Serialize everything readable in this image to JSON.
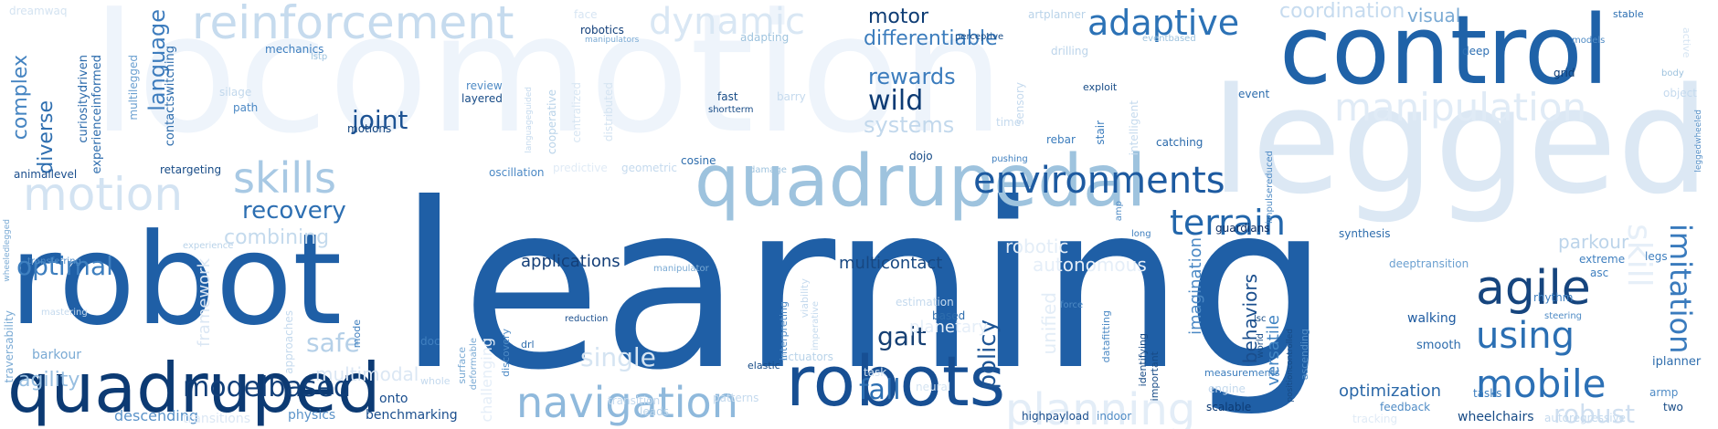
{
  "words": [
    {
      "t": "learning",
      "c": "#1f5fa6"
    },
    {
      "t": "robot",
      "c": "#1f5fa6"
    },
    {
      "t": "locomotion",
      "c": "#eef4fb"
    },
    {
      "t": "legged",
      "c": "#dce8f4"
    },
    {
      "t": "control",
      "c": "#1f62a8"
    },
    {
      "t": "quadrupedal",
      "c": "#9ec3de"
    },
    {
      "t": "quadruped",
      "c": "#0c3a73"
    },
    {
      "t": "robots",
      "c": "#174f93"
    },
    {
      "t": "reinforcement",
      "c": "#c6dbee"
    },
    {
      "t": "motion",
      "c": "#d3e3f2"
    },
    {
      "t": "planning",
      "c": "#e3edf7"
    },
    {
      "t": "navigation",
      "c": "#8fb9dc"
    },
    {
      "t": "manipulation",
      "c": "#e0ebf6"
    },
    {
      "t": "skills",
      "c": "#a8c9e4"
    },
    {
      "t": "environments",
      "c": "#1d5aa0"
    },
    {
      "t": "terrain",
      "c": "#2266ab"
    },
    {
      "t": "agile",
      "c": "#16457e"
    },
    {
      "t": "adaptive",
      "c": "#2c72b6"
    },
    {
      "t": "dynamic",
      "c": "#d9e7f4"
    },
    {
      "t": "mobile",
      "c": "#2c70b5"
    },
    {
      "t": "using",
      "c": "#2b6fb3"
    },
    {
      "t": "robust",
      "c": "#cfdff0"
    },
    {
      "t": "imitation",
      "c": "#3a7bbd"
    },
    {
      "t": "skill",
      "c": "#e6eff8"
    },
    {
      "t": "wild",
      "c": "#0d3b74"
    },
    {
      "t": "modelbased",
      "c": "#103e78"
    },
    {
      "t": "recovery",
      "c": "#2d6fb2"
    },
    {
      "t": "optimal",
      "c": "#3e7fbf"
    },
    {
      "t": "fall",
      "c": "#2c6fb2"
    },
    {
      "t": "gait",
      "c": "#153f73"
    },
    {
      "t": "safe",
      "c": "#b5d0e8"
    },
    {
      "t": "single",
      "c": "#d5e4f2"
    },
    {
      "t": "agility",
      "c": "#97bee0"
    },
    {
      "t": "diverse",
      "c": "#2f6fb0"
    },
    {
      "t": "language",
      "c": "#3d7cbd"
    },
    {
      "t": "complex",
      "c": "#4584c1"
    },
    {
      "t": "joint",
      "c": "#1c5293"
    },
    {
      "t": "motor",
      "c": "#0e3c74"
    },
    {
      "t": "differentiable",
      "c": "#3c7dbd"
    },
    {
      "t": "rewards",
      "c": "#3b7cbd"
    },
    {
      "t": "systems",
      "c": "#c2d8ec"
    },
    {
      "t": "coordination",
      "c": "#c6dbef"
    },
    {
      "t": "visual",
      "c": "#7aaad4"
    },
    {
      "t": "combining",
      "c": "#c4daed"
    },
    {
      "t": "applications",
      "c": "#143f78"
    },
    {
      "t": "multicontact",
      "c": "#174781"
    },
    {
      "t": "autonomous",
      "c": "#e5eef8"
    },
    {
      "t": "policy",
      "c": "#1e5595"
    },
    {
      "t": "behaviors",
      "c": "#1a4e8d"
    },
    {
      "t": "versatile",
      "c": "#4184c3"
    },
    {
      "t": "imagination",
      "c": "#4b89c5"
    },
    {
      "t": "parkour",
      "c": "#bcd4ea"
    },
    {
      "t": "optimization",
      "c": "#2b68a8"
    },
    {
      "t": "multimodal",
      "c": "#dbe7f4"
    },
    {
      "t": "framework",
      "c": "#dbe7f4"
    },
    {
      "t": "unified",
      "c": "#e3edf7"
    },
    {
      "t": "robotic",
      "c": "#e3edf7"
    },
    {
      "t": "challenging",
      "c": "#e5eef8"
    },
    {
      "t": "physics",
      "c": "#5b93c9"
    },
    {
      "t": "descending",
      "c": "#5b93c9"
    },
    {
      "t": "benchmarking",
      "c": "#1a4e8d"
    },
    {
      "t": "robotics",
      "c": "#123f7a"
    },
    {
      "t": "face",
      "c": "#d7e5f3"
    },
    {
      "t": "dreamwaq",
      "c": "#d4e3f1"
    },
    {
      "t": "mechanics",
      "c": "#3f7fbf"
    },
    {
      "t": "curiositydriven",
      "c": "#2b6aab"
    },
    {
      "t": "experienceinformed",
      "c": "#2d6cad"
    },
    {
      "t": "contactswitching",
      "c": "#2e6dad"
    },
    {
      "t": "multilegged",
      "c": "#6a9fd0"
    },
    {
      "t": "review",
      "c": "#4f8bc5"
    },
    {
      "t": "layered",
      "c": "#174b86"
    },
    {
      "t": "path",
      "c": "#4b88c4"
    },
    {
      "t": "silage",
      "c": "#c2d8ec"
    },
    {
      "t": "motions",
      "c": "#15467f"
    },
    {
      "t": "retargeting",
      "c": "#174b86"
    },
    {
      "t": "animallevel",
      "c": "#1a4e8d"
    },
    {
      "t": "oscillation",
      "c": "#4c89c5"
    },
    {
      "t": "predictive",
      "c": "#e0ebf6"
    },
    {
      "t": "geometric",
      "c": "#c5daee"
    },
    {
      "t": "cosine",
      "c": "#2e6dad"
    },
    {
      "t": "fast",
      "c": "#174b86"
    },
    {
      "t": "shortterm",
      "c": "#174b86"
    },
    {
      "t": "centralized",
      "c": "#d8e6f3"
    },
    {
      "t": "distributed",
      "c": "#d5e4f2"
    },
    {
      "t": "cooperative",
      "c": "#b9d3e9"
    },
    {
      "t": "manipulators",
      "c": "#7aaad4"
    },
    {
      "t": "adapting",
      "c": "#9ec3de"
    },
    {
      "t": "drilling",
      "c": "#bcd4ea"
    },
    {
      "t": "deep",
      "c": "#2d6fb2"
    },
    {
      "t": "grid",
      "c": "#0d3b74"
    },
    {
      "t": "stable",
      "c": "#2c6fb2"
    },
    {
      "t": "perceptive",
      "c": "#174b86"
    },
    {
      "t": "eventbased",
      "c": "#9ec3de"
    },
    {
      "t": "artplanner",
      "c": "#b9d3e9"
    },
    {
      "t": "exploit",
      "c": "#174b86"
    },
    {
      "t": "catching",
      "c": "#2b6aab"
    },
    {
      "t": "rebar",
      "c": "#3c7dbd"
    },
    {
      "t": "stair",
      "c": "#3c7dbd"
    },
    {
      "t": "pushing",
      "c": "#3f7fbf"
    },
    {
      "t": "dojo",
      "c": "#174b86"
    },
    {
      "t": "synthesis",
      "c": "#2e6dad"
    },
    {
      "t": "guardians",
      "c": "#102f63"
    },
    {
      "t": "long",
      "c": "#3f7fbf"
    },
    {
      "t": "deeptransition",
      "c": "#6a9fd0"
    },
    {
      "t": "extreme",
      "c": "#3f7fbf"
    },
    {
      "t": "asc",
      "c": "#3f7fbf"
    },
    {
      "t": "legs",
      "c": "#3f7fbf"
    },
    {
      "t": "rhythm",
      "c": "#3f7fbf"
    },
    {
      "t": "steering",
      "c": "#4f8bc5"
    },
    {
      "t": "walking",
      "c": "#1d5aa0"
    },
    {
      "t": "smooth",
      "c": "#2b6aab"
    },
    {
      "t": "tasks",
      "c": "#3c7dbd"
    },
    {
      "t": "iplanner",
      "c": "#2e6dad"
    },
    {
      "t": "armp",
      "c": "#4f8bc5"
    },
    {
      "t": "two",
      "c": "#174b86"
    },
    {
      "t": "wheelchairs",
      "c": "#174b86"
    },
    {
      "t": "feedback",
      "c": "#4f8bc5"
    },
    {
      "t": "tracking",
      "c": "#e0ebf6"
    },
    {
      "t": "indoor",
      "c": "#4f8bc5"
    },
    {
      "t": "scalable",
      "c": "#0d3b74"
    },
    {
      "t": "engine",
      "c": "#c5daee"
    },
    {
      "t": "measurements",
      "c": "#3c7dbd"
    },
    {
      "t": "highpayload",
      "c": "#1a4e8d"
    },
    {
      "t": "datafitting",
      "c": "#4f8bc5"
    },
    {
      "t": "identifying",
      "c": "#174b86"
    },
    {
      "t": "important",
      "c": "#174b86"
    },
    {
      "t": "estimation",
      "c": "#c5daee"
    },
    {
      "t": "based",
      "c": "#2e6dad"
    },
    {
      "t": "force",
      "c": "#4f8bc5"
    },
    {
      "t": "planetary",
      "c": "#e5eef8"
    },
    {
      "t": "elastic",
      "c": "#174b86"
    },
    {
      "t": "actuators",
      "c": "#b9d3e9"
    },
    {
      "t": "task",
      "c": "#d5e4f2"
    },
    {
      "t": "neural",
      "c": "#d5e4f2"
    },
    {
      "t": "patterns",
      "c": "#c5daee"
    },
    {
      "t": "transition",
      "c": "#c5daee"
    },
    {
      "t": "leads",
      "c": "#b9d3e9"
    },
    {
      "t": "reduction",
      "c": "#1a4e8d"
    },
    {
      "t": "manipulator",
      "c": "#7aaad4"
    },
    {
      "t": "drl",
      "c": "#2e6dad"
    },
    {
      "t": "doc",
      "c": "#3f7fbf"
    },
    {
      "t": "mode",
      "c": "#3f7fbf"
    },
    {
      "t": "surface",
      "c": "#7aaad4"
    },
    {
      "t": "deformable",
      "c": "#7aaad4"
    },
    {
      "t": "discovery",
      "c": "#4f8bc5"
    },
    {
      "t": "approaches",
      "c": "#c5daee"
    },
    {
      "t": "transferring",
      "c": "#4f8bc5"
    },
    {
      "t": "mastering",
      "c": "#c5daee"
    },
    {
      "t": "traversability",
      "c": "#7aaad4"
    },
    {
      "t": "wheeledlegged",
      "c": "#7aaad4"
    },
    {
      "t": "barkour",
      "c": "#7aaad4"
    },
    {
      "t": "experience",
      "c": "#b9d3e9"
    },
    {
      "t": "whole",
      "c": "#c5daee"
    },
    {
      "t": "transitions",
      "c": "#dbe7f4"
    },
    {
      "t": "onto",
      "c": "#1a4e8d"
    },
    {
      "t": "lstp",
      "c": "#9ec3de"
    },
    {
      "t": "models",
      "c": "#4f8bc5"
    },
    {
      "t": "body",
      "c": "#9ec3de"
    },
    {
      "t": "object",
      "c": "#c5daee"
    },
    {
      "t": "leggedwheeled",
      "c": "#4f8bc5"
    },
    {
      "t": "active",
      "c": "#d5e4f2"
    },
    {
      "t": "autoregressive",
      "c": "#c5daee"
    },
    {
      "t": "impulsereduced",
      "c": "#4f8bc5"
    },
    {
      "t": "positioncontrolled",
      "c": "#174b86"
    },
    {
      "t": "ascending",
      "c": "#4f8bc5"
    },
    {
      "t": "world",
      "c": "#174b86"
    },
    {
      "t": "lsc",
      "c": "#174b86"
    },
    {
      "t": "intelligent",
      "c": "#c5daee"
    },
    {
      "t": "interpreting",
      "c": "#4f8bc5"
    },
    {
      "t": "viability",
      "c": "#c5daee"
    },
    {
      "t": "imperative",
      "c": "#c5daee"
    },
    {
      "t": "event",
      "c": "#2e6dad"
    },
    {
      "t": "time",
      "c": "#c5daee"
    },
    {
      "t": "barry",
      "c": "#c5daee"
    },
    {
      "t": "sensory",
      "c": "#c5daee"
    },
    {
      "t": "amp",
      "c": "#4f8bc5"
    },
    {
      "t": "damage",
      "c": "#9ec3de"
    },
    {
      "t": "languageguided",
      "c": "#c5daee"
    }
  ]
}
